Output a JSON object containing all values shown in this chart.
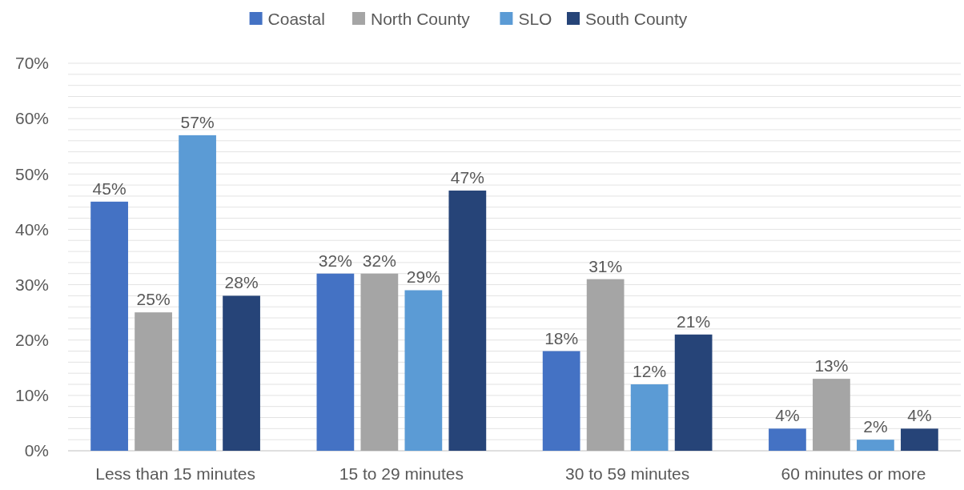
{
  "chart_data": {
    "type": "bar",
    "categories": [
      "Less than 15 minutes",
      "15 to 29 minutes",
      "30 to 59 minutes",
      "60 minutes or more"
    ],
    "series": [
      {
        "name": "Coastal",
        "color": "#4472c4",
        "values": [
          45,
          32,
          18,
          4
        ],
        "value_labels": [
          "45%",
          "32%",
          "18%",
          "4%"
        ]
      },
      {
        "name": "North County",
        "color": "#a5a5a5",
        "values": [
          25,
          32,
          31,
          13
        ],
        "value_labels": [
          "25%",
          "32%",
          "31%",
          "13%"
        ]
      },
      {
        "name": "SLO",
        "color": "#5b9bd5",
        "values": [
          57,
          29,
          12,
          2
        ],
        "value_labels": [
          "57%",
          "29%",
          "12%",
          "2%"
        ]
      },
      {
        "name": "South County",
        "color": "#264478",
        "values": [
          28,
          47,
          21,
          4
        ],
        "value_labels": [
          "28%",
          "47%",
          "21%",
          "4%"
        ]
      }
    ],
    "ylim": [
      0,
      70
    ],
    "yticks": [
      {
        "value": 0,
        "label": "0%"
      },
      {
        "value": 2,
        "label": null
      },
      {
        "value": 4,
        "label": null
      },
      {
        "value": 6,
        "label": null
      },
      {
        "value": 8,
        "label": null
      },
      {
        "value": 10,
        "label": "10%"
      },
      {
        "value": 12,
        "label": null
      },
      {
        "value": 14,
        "label": null
      },
      {
        "value": 16,
        "label": null
      },
      {
        "value": 18,
        "label": null
      },
      {
        "value": 20,
        "label": "20%"
      },
      {
        "value": 22,
        "label": null
      },
      {
        "value": 24,
        "label": null
      },
      {
        "value": 26,
        "label": null
      },
      {
        "value": 28,
        "label": null
      },
      {
        "value": 30,
        "label": "30%"
      },
      {
        "value": 32,
        "label": null
      },
      {
        "value": 34,
        "label": null
      },
      {
        "value": 36,
        "label": null
      },
      {
        "value": 38,
        "label": null
      },
      {
        "value": 40,
        "label": "40%"
      },
      {
        "value": 42,
        "label": null
      },
      {
        "value": 44,
        "label": null
      },
      {
        "value": 46,
        "label": null
      },
      {
        "value": 48,
        "label": null
      },
      {
        "value": 50,
        "label": "50%"
      },
      {
        "value": 52,
        "label": null
      },
      {
        "value": 54,
        "label": null
      },
      {
        "value": 56,
        "label": null
      },
      {
        "value": 58,
        "label": null
      },
      {
        "value": 60,
        "label": "60%"
      },
      {
        "value": 62,
        "label": null
      },
      {
        "value": 64,
        "label": null
      },
      {
        "value": 66,
        "label": null
      },
      {
        "value": 68,
        "label": null
      },
      {
        "value": 70,
        "label": "70%"
      }
    ],
    "grid": "y",
    "legend": "top"
  }
}
